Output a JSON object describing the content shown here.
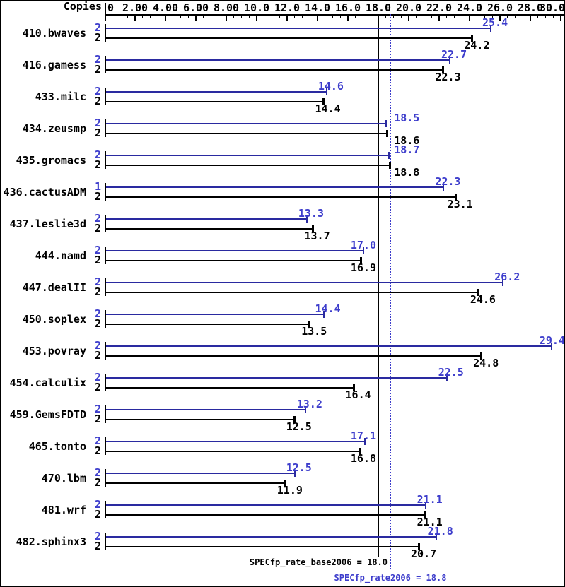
{
  "window": {
    "background": "#ffffff",
    "border_color": "#000000"
  },
  "chart_data": {
    "type": "bar",
    "orientation": "horizontal",
    "title": "",
    "copies_header": "Copies",
    "axis": {
      "side": "top",
      "tick_labels": [
        "0",
        "2.00",
        "4.00",
        "6.00",
        "8.00",
        "10.0",
        "12.0",
        "14.0",
        "16.0",
        "18.0",
        "20.0",
        "22.0",
        "24.0",
        "26.0",
        "28.0",
        "30.0"
      ],
      "tick_values": [
        0,
        2,
        4,
        6,
        8,
        10,
        12,
        14,
        16,
        18,
        20,
        22,
        24,
        26,
        28,
        30
      ],
      "minor_tick_step": 0.5,
      "xlim": [
        0,
        30.2
      ],
      "grid": false
    },
    "categories": [
      "410.bwaves",
      "416.gamess",
      "433.milc",
      "434.zeusmp",
      "435.gromacs",
      "436.cactusADM",
      "437.leslie3d",
      "444.namd",
      "447.dealII",
      "450.soplex",
      "453.povray",
      "454.calculix",
      "459.GemsFDTD",
      "465.tonto",
      "470.lbm",
      "481.wrf",
      "482.sphinx3"
    ],
    "series": [
      {
        "name": "peak",
        "bar_color": "#2a2aa0",
        "label_color": "#3d3dcc",
        "copies": [
          2,
          2,
          2,
          2,
          2,
          1,
          2,
          2,
          2,
          2,
          2,
          2,
          2,
          2,
          2,
          2,
          2
        ],
        "values": [
          25.4,
          22.7,
          14.6,
          18.5,
          18.7,
          22.3,
          13.3,
          17.0,
          26.2,
          14.4,
          29.4,
          22.5,
          13.2,
          17.1,
          12.5,
          21.1,
          21.8
        ]
      },
      {
        "name": "base",
        "bar_color": "#000000",
        "label_color": "#000000",
        "copies": [
          2,
          2,
          2,
          2,
          2,
          2,
          2,
          2,
          2,
          2,
          2,
          2,
          2,
          2,
          2,
          2,
          2
        ],
        "values": [
          24.2,
          22.3,
          14.4,
          18.6,
          18.8,
          23.1,
          13.7,
          16.9,
          24.6,
          13.5,
          24.8,
          16.4,
          12.5,
          16.8,
          11.9,
          21.1,
          20.7
        ]
      }
    ],
    "reference_lines": [
      {
        "name": "base_mean",
        "label": "SPECfp_rate_base2006 = 18.0",
        "value": 18.0,
        "color": "#000000",
        "style": "solid"
      },
      {
        "name": "peak_mean",
        "label": "SPECfp_rate2006 = 18.8",
        "value": 18.8,
        "color": "#3d3dcc",
        "style": "dotted"
      }
    ]
  }
}
